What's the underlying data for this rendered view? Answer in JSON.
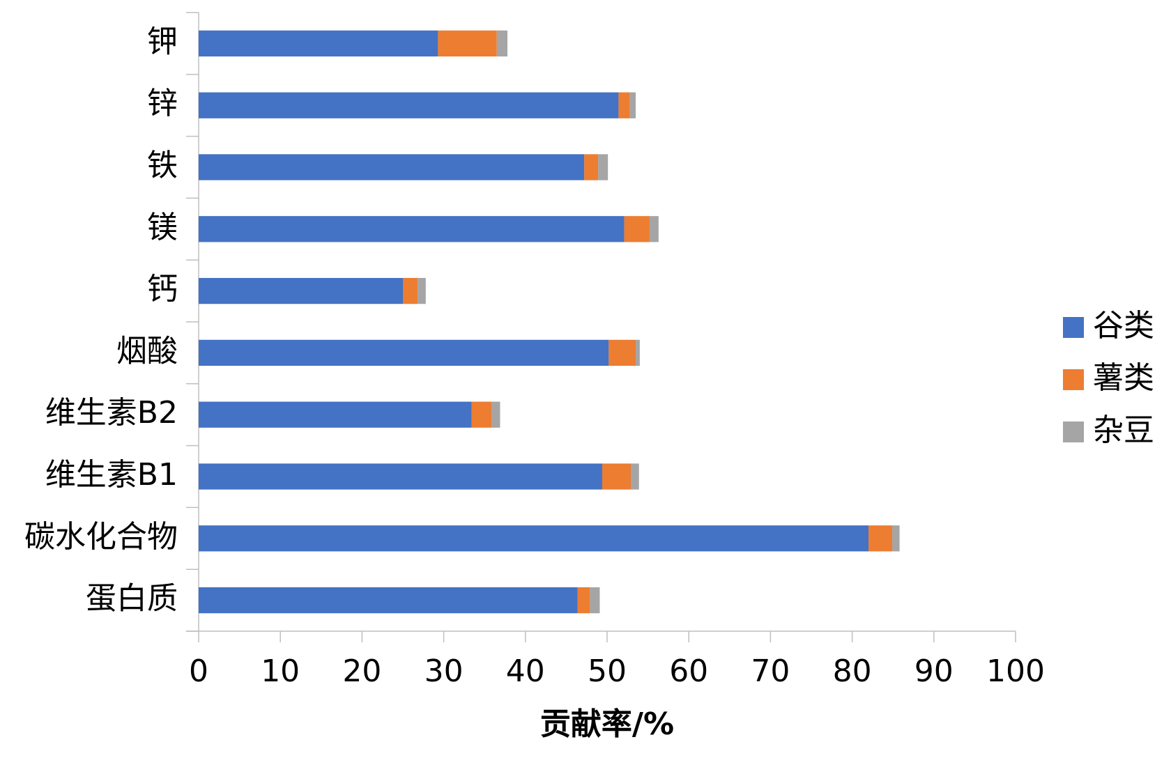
{
  "chart_data": {
    "type": "stacked-bar-horizontal",
    "xlabel": "贡献率/%",
    "categories": [
      "钾",
      "锌",
      "铁",
      "镁",
      "钙",
      "烟酸",
      "维生素B2",
      "维生素B1",
      "碳水化合物",
      "蛋白质"
    ],
    "series": [
      {
        "name": "谷类",
        "color": "#4472c4",
        "values": [
          29.3,
          51.4,
          47.2,
          52.1,
          25.0,
          50.2,
          33.4,
          49.4,
          82.0,
          46.4
        ]
      },
      {
        "name": "薯类",
        "color": "#ed7d31",
        "values": [
          7.2,
          1.4,
          1.7,
          3.1,
          1.8,
          3.3,
          2.5,
          3.5,
          2.9,
          1.5
        ]
      },
      {
        "name": "杂豆",
        "color": "#a5a5a5",
        "values": [
          1.3,
          0.7,
          1.2,
          1.1,
          1.0,
          0.5,
          1.0,
          1.0,
          0.9,
          1.2
        ]
      }
    ],
    "xlim": [
      0,
      100
    ],
    "xticks": [
      0,
      10,
      20,
      30,
      40,
      50,
      60,
      70,
      80,
      90,
      100
    ],
    "legend": "right"
  }
}
